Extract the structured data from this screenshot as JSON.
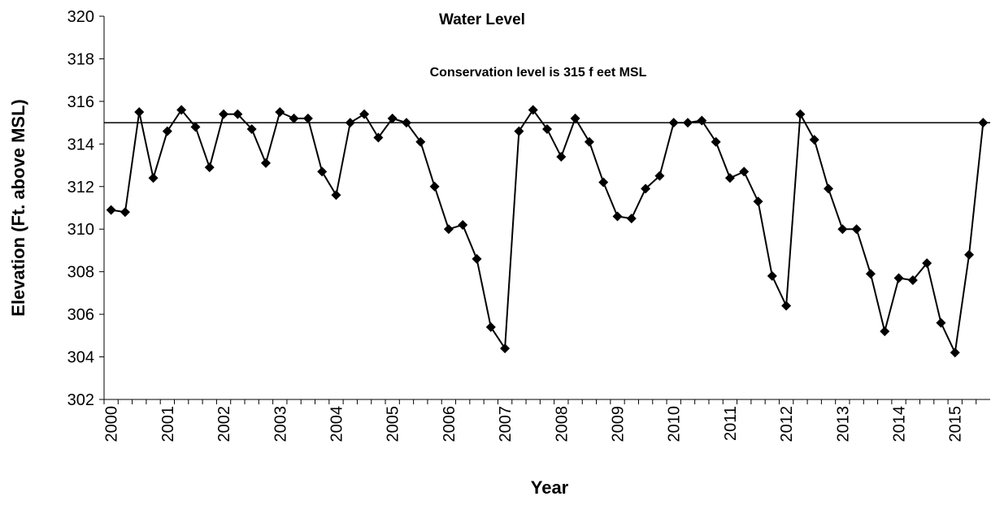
{
  "chart_data": {
    "type": "line",
    "title": "Water Level",
    "annotation": "Conservation level is 315 f eet  MSL",
    "reference_line": 315,
    "xlabel": "Year",
    "ylabel": "Elevation (Ft. above MSL)",
    "categories": [
      "2000",
      null,
      null,
      null,
      "2001",
      null,
      null,
      null,
      "2002",
      null,
      null,
      null,
      "2003",
      null,
      null,
      null,
      "2004",
      null,
      null,
      null,
      "2005",
      null,
      null,
      null,
      "2006",
      null,
      null,
      null,
      "2007",
      null,
      null,
      null,
      "2008",
      null,
      null,
      null,
      "2009",
      null,
      null,
      null,
      "2010",
      null,
      null,
      null,
      "2011",
      null,
      null,
      null,
      "2012",
      null,
      null,
      null,
      "2013",
      null,
      null,
      null,
      "2014",
      null,
      null,
      null,
      "2015",
      null,
      null
    ],
    "series": [
      {
        "color": "#000000",
        "values": [
          310.9,
          310.8,
          315.5,
          312.4,
          314.6,
          315.6,
          314.8,
          312.9,
          315.4,
          315.4,
          314.7,
          313.1,
          315.5,
          315.2,
          315.2,
          312.7,
          311.6,
          315.0,
          315.4,
          314.3,
          315.2,
          315.0,
          314.1,
          312.0,
          310.0,
          310.2,
          308.6,
          305.4,
          304.4,
          314.6,
          315.6,
          314.7,
          313.4,
          315.2,
          314.1,
          312.2,
          310.6,
          310.5,
          311.9,
          312.5,
          315.0,
          315.0,
          315.1,
          314.1,
          312.4,
          312.7,
          311.3,
          307.8,
          306.4,
          315.4,
          314.2,
          311.9,
          310.0,
          310.0,
          307.9,
          305.2,
          307.7,
          307.6,
          308.4,
          305.6,
          304.2,
          308.8,
          315.0
        ]
      }
    ],
    "ylim": [
      302,
      320
    ],
    "yticks": [
      302,
      304,
      306,
      308,
      310,
      312,
      314,
      316,
      318,
      320
    ],
    "grid": false
  }
}
